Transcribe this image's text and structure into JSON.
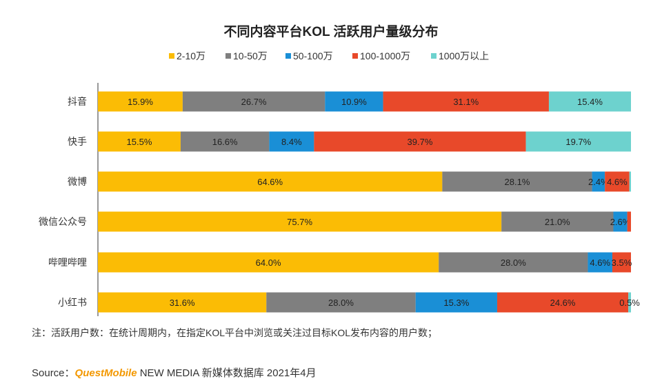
{
  "chart_data": {
    "type": "bar",
    "orientation": "horizontal-stacked-100",
    "title": "不同内容平台KOL 活跃用户量级分布",
    "categories": [
      "抖音",
      "快手",
      "微博",
      "微信公众号",
      "哔哩哔哩",
      "小红书"
    ],
    "series": [
      {
        "name": "2-10万",
        "color": "#fbbc05",
        "values": [
          15.9,
          15.5,
          64.6,
          75.7,
          64.0,
          31.6
        ]
      },
      {
        "name": "10-50万",
        "color": "#7f7f7f",
        "values": [
          26.7,
          16.6,
          28.1,
          21.0,
          28.0,
          28.0
        ]
      },
      {
        "name": "50-100万",
        "color": "#1a8fd6",
        "values": [
          10.9,
          8.4,
          2.4,
          2.6,
          4.6,
          15.3
        ]
      },
      {
        "name": "100-1000万",
        "color": "#e8492a",
        "values": [
          31.1,
          39.7,
          4.6,
          0.7,
          3.5,
          24.6
        ]
      },
      {
        "name": "1000万以上",
        "color": "#6dd2ce",
        "values": [
          15.4,
          19.7,
          0.3,
          0.0,
          0.0,
          0.5
        ]
      }
    ],
    "labels": [
      [
        "15.9%",
        "26.7%",
        "10.9%",
        "31.1%",
        "15.4%"
      ],
      [
        "15.5%",
        "16.6%",
        "8.4%",
        "39.7%",
        "19.7%"
      ],
      [
        "64.6%",
        "28.1%",
        "2.4%",
        "4.6%",
        ""
      ],
      [
        "75.7%",
        "21.0%",
        "2.6%",
        "",
        ""
      ],
      [
        "64.0%",
        "28.0%",
        "4.6%",
        "3.5%",
        ""
      ],
      [
        "31.6%",
        "28.0%",
        "15.3%",
        "24.6%",
        "0.5%"
      ]
    ],
    "xlim": [
      0,
      100
    ]
  },
  "note": "注：活跃用户数：在统计周期内，在指定KOL平台中浏览或关注过目标KOL发布内容的用户数；",
  "source": {
    "prefix": "Source：",
    "brand": "QuestMobile",
    "rest": " NEW MEDIA 新媒体数据库 2021年4月"
  }
}
